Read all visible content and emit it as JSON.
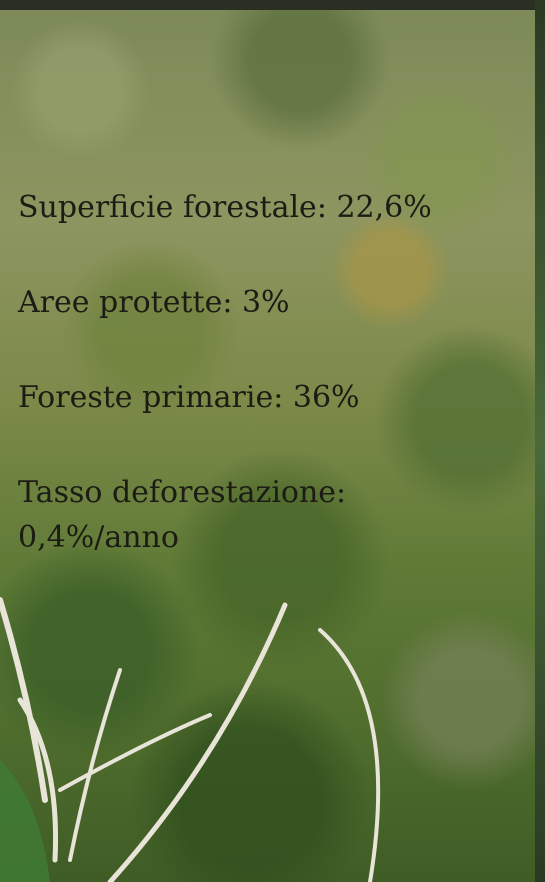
{
  "stats": [
    "Superficie forestale: 22,6%",
    "Aree protette: 3%",
    "Foreste primarie: 36%",
    "Tasso deforestazione: 0,4%/anno"
  ]
}
